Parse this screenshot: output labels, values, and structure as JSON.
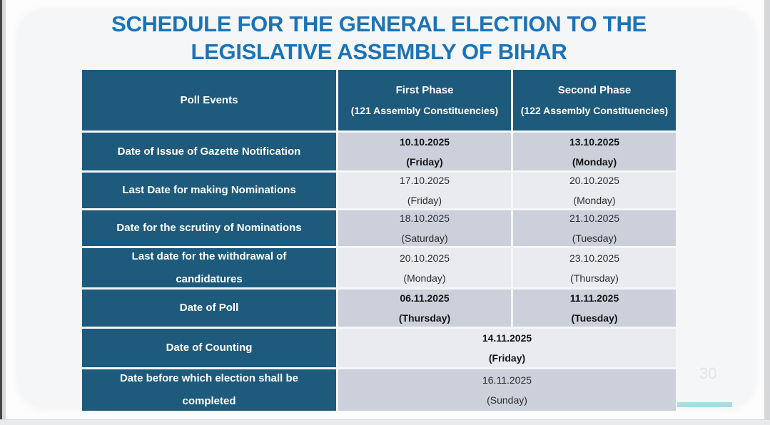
{
  "slide": {
    "title_line1": "SCHEDULE FOR THE GENERAL ELECTION TO THE",
    "title_line2": "LEGISLATIVE ASSEMBLY OF BIHAR",
    "page_number": "30",
    "colors": {
      "title_blue": "#1b73b7",
      "header_teal": "#1e5a7c",
      "row_dark": "#ccd0da",
      "row_light": "#e9ebef",
      "accent_cyan": "#a8dde4"
    }
  },
  "table": {
    "header": {
      "col1": "Poll Events",
      "col2_line1": "First Phase",
      "col2_line2": "(121 Assembly Constituencies)",
      "col3_line1": "Second Phase",
      "col3_line2": "(122 Assembly Constituencies)"
    },
    "rows": [
      {
        "event": "Date of Issue of Gazette Notification",
        "first": {
          "date": "10.10.2025",
          "day": "(Friday)"
        },
        "second": {
          "date": "13.10.2025",
          "day": "(Monday)"
        },
        "bold": true,
        "merged": false
      },
      {
        "event": "Last Date for making Nominations",
        "first": {
          "date": "17.10.2025",
          "day": "(Friday)"
        },
        "second": {
          "date": "20.10.2025",
          "day": "(Monday)"
        },
        "bold": false,
        "merged": false
      },
      {
        "event": "Date for the scrutiny of Nominations",
        "first": {
          "date": "18.10.2025",
          "day": "(Saturday)"
        },
        "second": {
          "date": "21.10.2025",
          "day": "(Tuesday)"
        },
        "bold": false,
        "merged": false
      },
      {
        "event": "Last date for the withdrawal of candidatures",
        "first": {
          "date": "20.10.2025",
          "day": "(Monday)"
        },
        "second": {
          "date": "23.10.2025",
          "day": "(Thursday)"
        },
        "bold": false,
        "merged": false
      },
      {
        "event": "Date of Poll",
        "first": {
          "date": "06.11.2025",
          "day": "(Thursday)"
        },
        "second": {
          "date": "11.11.2025",
          "day": "(Tuesday)"
        },
        "bold": true,
        "merged": false
      },
      {
        "event": "Date of Counting",
        "first": {
          "date": "14.11.2025",
          "day": "(Friday)"
        },
        "second": null,
        "bold": true,
        "merged": true
      },
      {
        "event": "Date before which election shall be completed",
        "first": {
          "date": "16.11.2025",
          "day": "(Sunday)"
        },
        "second": null,
        "bold": false,
        "merged": true
      }
    ]
  }
}
